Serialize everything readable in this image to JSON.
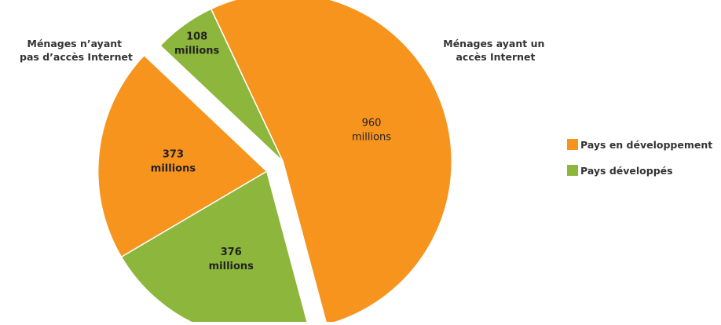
{
  "chart_data": {
    "type": "pie",
    "title": "",
    "groups": [
      {
        "label_lines": [
          "Ménages n’ayant",
          "pas d’accès Internet"
        ],
        "slices": [
          {
            "series": "Pays développés",
            "value": 108,
            "label_lines": [
              "108",
              "millions"
            ]
          },
          {
            "series": "Pays en développement",
            "value": 960,
            "label_lines": [
              "960",
              "millions"
            ]
          }
        ]
      },
      {
        "label_lines": [
          "Ménages ayant un",
          "accès Internet"
        ],
        "slices": [
          {
            "series": "Pays développés",
            "value": 376,
            "label_lines": [
              "376",
              "millions"
            ]
          },
          {
            "series": "Pays en développement",
            "value": 373,
            "label_lines": [
              "373",
              "millions"
            ]
          }
        ]
      }
    ],
    "legend": {
      "placement": "right",
      "entries": [
        {
          "label": "Pays en développement",
          "color": "#F7941D"
        },
        {
          "label": "Pays développés",
          "color": "#8DB63C"
        }
      ]
    },
    "colors": {
      "Pays en développement": "#F7941D",
      "Pays développés": "#8DB63C"
    }
  }
}
